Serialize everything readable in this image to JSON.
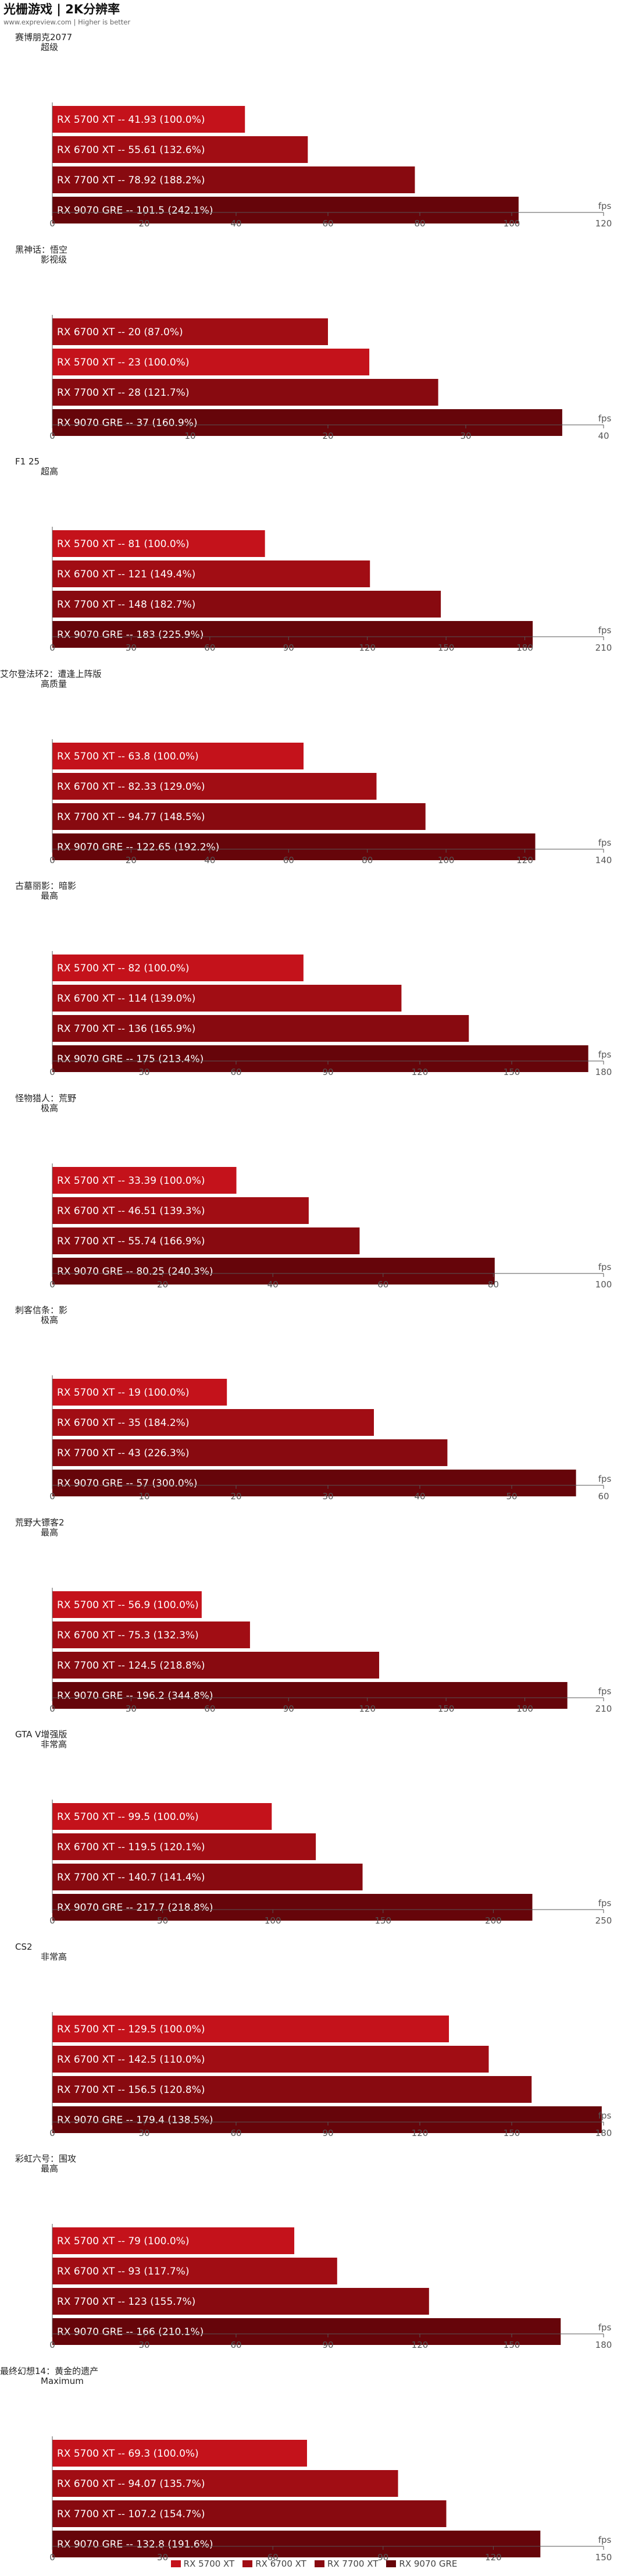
{
  "header": {
    "title": "光栅游戏 | 2K分辨率",
    "subtitle": "www.expreview.com | Higher is better"
  },
  "legend": [
    {
      "name": "RX 5700 XT",
      "color": "#c4121b"
    },
    {
      "name": "RX 6700 XT",
      "color": "#a10d14"
    },
    {
      "name": "RX 7700 XT",
      "color": "#880a10"
    },
    {
      "name": "RX 9070 GRE",
      "color": "#66050a"
    }
  ],
  "chart_data": [
    {
      "type": "bar",
      "orientation": "horizontal",
      "title": "赛博朋克2077",
      "subtitle": "超级",
      "unit": "fps",
      "xlim": [
        0,
        120
      ],
      "ticks": [
        0,
        20,
        40,
        60,
        80,
        100,
        120
      ],
      "bars": [
        {
          "gpu": "RX 5700 XT",
          "value": 41.93,
          "label": "RX 5700 XT  --  41.93 (100.0%)"
        },
        {
          "gpu": "RX 6700 XT",
          "value": 55.61,
          "label": "RX 6700 XT  --  55.61 (132.6%)"
        },
        {
          "gpu": "RX 7700 XT",
          "value": 78.92,
          "label": "RX 7700 XT  --  78.92 (188.2%)"
        },
        {
          "gpu": "RX 9070 GRE",
          "value": 101.5,
          "label": "RX 9070 GRE  --  101.5 (242.1%)"
        }
      ]
    },
    {
      "type": "bar",
      "orientation": "horizontal",
      "title": "黑神话：悟空",
      "subtitle": "影视级",
      "unit": "fps",
      "xlim": [
        0,
        40
      ],
      "ticks": [
        0,
        10,
        20,
        30,
        40
      ],
      "bars": [
        {
          "gpu": "RX 6700 XT",
          "value": 20,
          "label": "RX 6700 XT  --  20 (87.0%)"
        },
        {
          "gpu": "RX 5700 XT",
          "value": 23,
          "label": "RX 5700 XT  --  23 (100.0%)"
        },
        {
          "gpu": "RX 7700 XT",
          "value": 28,
          "label": "RX 7700 XT  --  28 (121.7%)"
        },
        {
          "gpu": "RX 9070 GRE",
          "value": 37,
          "label": "RX 9070 GRE  --  37 (160.9%)"
        }
      ]
    },
    {
      "type": "bar",
      "orientation": "horizontal",
      "title": "F1 25",
      "subtitle": "超高",
      "unit": "fps",
      "xlim": [
        0,
        210
      ],
      "ticks": [
        0,
        30,
        60,
        90,
        120,
        150,
        180,
        210
      ],
      "bars": [
        {
          "gpu": "RX 5700 XT",
          "value": 81,
          "label": "RX 5700 XT  --  81 (100.0%)"
        },
        {
          "gpu": "RX 6700 XT",
          "value": 121,
          "label": "RX 6700 XT  --  121 (149.4%)"
        },
        {
          "gpu": "RX 7700 XT",
          "value": 148,
          "label": "RX 7700 XT  --  148 (182.7%)"
        },
        {
          "gpu": "RX 9070 GRE",
          "value": 183,
          "label": "RX 9070 GRE  --  183 (225.9%)"
        }
      ]
    },
    {
      "type": "bar",
      "orientation": "horizontal",
      "title": "艾尔登法环2：遭逢上阵版",
      "subtitle": "高质量",
      "unit": "fps",
      "xlim": [
        0,
        140
      ],
      "ticks": [
        0,
        20,
        40,
        60,
        80,
        100,
        120,
        140
      ],
      "bars": [
        {
          "gpu": "RX 5700 XT",
          "value": 63.8,
          "label": "RX 5700 XT  --  63.8 (100.0%)"
        },
        {
          "gpu": "RX 6700 XT",
          "value": 82.33,
          "label": "RX 6700 XT  --  82.33 (129.0%)"
        },
        {
          "gpu": "RX 7700 XT",
          "value": 94.77,
          "label": "RX 7700 XT  --  94.77 (148.5%)"
        },
        {
          "gpu": "RX 9070 GRE",
          "value": 122.65,
          "label": "RX 9070 GRE  --  122.65 (192.2%)"
        }
      ]
    },
    {
      "type": "bar",
      "orientation": "horizontal",
      "title": "古墓丽影：暗影",
      "subtitle": "最高",
      "unit": "fps",
      "xlim": [
        0,
        180
      ],
      "ticks": [
        0,
        30,
        60,
        90,
        120,
        150,
        180
      ],
      "bars": [
        {
          "gpu": "RX 5700 XT",
          "value": 82,
          "label": "RX 5700 XT  --  82 (100.0%)"
        },
        {
          "gpu": "RX 6700 XT",
          "value": 114,
          "label": "RX 6700 XT  --  114 (139.0%)"
        },
        {
          "gpu": "RX 7700 XT",
          "value": 136,
          "label": "RX 7700 XT  --  136 (165.9%)"
        },
        {
          "gpu": "RX 9070 GRE",
          "value": 175,
          "label": "RX 9070 GRE  --  175 (213.4%)"
        }
      ]
    },
    {
      "type": "bar",
      "orientation": "horizontal",
      "title": "怪物猎人：荒野",
      "subtitle": "极高",
      "unit": "fps",
      "xlim": [
        0,
        100
      ],
      "ticks": [
        0,
        20,
        40,
        60,
        80,
        100
      ],
      "bars": [
        {
          "gpu": "RX 5700 XT",
          "value": 33.39,
          "label": "RX 5700 XT  --  33.39 (100.0%)"
        },
        {
          "gpu": "RX 6700 XT",
          "value": 46.51,
          "label": "RX 6700 XT  --  46.51 (139.3%)"
        },
        {
          "gpu": "RX 7700 XT",
          "value": 55.74,
          "label": "RX 7700 XT  --  55.74 (166.9%)"
        },
        {
          "gpu": "RX 9070 GRE",
          "value": 80.25,
          "label": "RX 9070 GRE  --  80.25 (240.3%)"
        }
      ]
    },
    {
      "type": "bar",
      "orientation": "horizontal",
      "title": "刺客信条：影",
      "subtitle": "极高",
      "unit": "fps",
      "xlim": [
        0,
        60
      ],
      "ticks": [
        0,
        10,
        20,
        30,
        40,
        50,
        60
      ],
      "bars": [
        {
          "gpu": "RX 5700 XT",
          "value": 19,
          "label": "RX 5700 XT  --  19 (100.0%)"
        },
        {
          "gpu": "RX 6700 XT",
          "value": 35,
          "label": "RX 6700 XT  --  35 (184.2%)"
        },
        {
          "gpu": "RX 7700 XT",
          "value": 43,
          "label": "RX 7700 XT  --  43 (226.3%)"
        },
        {
          "gpu": "RX 9070 GRE",
          "value": 57,
          "label": "RX 9070 GRE  --  57 (300.0%)"
        }
      ]
    },
    {
      "type": "bar",
      "orientation": "horizontal",
      "title": "荒野大镖客2",
      "subtitle": "最高",
      "unit": "fps",
      "xlim": [
        0,
        210
      ],
      "ticks": [
        0,
        30,
        60,
        90,
        120,
        150,
        180,
        210
      ],
      "bars": [
        {
          "gpu": "RX 5700 XT",
          "value": 56.9,
          "label": "RX 5700 XT  --  56.9 (100.0%)"
        },
        {
          "gpu": "RX 6700 XT",
          "value": 75.3,
          "label": "RX 6700 XT  --  75.3 (132.3%)"
        },
        {
          "gpu": "RX 7700 XT",
          "value": 124.5,
          "label": "RX 7700 XT  --  124.5 (218.8%)"
        },
        {
          "gpu": "RX 9070 GRE",
          "value": 196.2,
          "label": "RX 9070 GRE  --  196.2 (344.8%)"
        }
      ]
    },
    {
      "type": "bar",
      "orientation": "horizontal",
      "title": "GTA V增强版",
      "subtitle": "非常高",
      "unit": "fps",
      "xlim": [
        0,
        250
      ],
      "ticks": [
        0,
        50,
        100,
        150,
        200,
        250
      ],
      "bars": [
        {
          "gpu": "RX 5700 XT",
          "value": 99.5,
          "label": "RX 5700 XT  --  99.5 (100.0%)"
        },
        {
          "gpu": "RX 6700 XT",
          "value": 119.5,
          "label": "RX 6700 XT  --  119.5 (120.1%)"
        },
        {
          "gpu": "RX 7700 XT",
          "value": 140.7,
          "label": "RX 7700 XT  --  140.7 (141.4%)"
        },
        {
          "gpu": "RX 9070 GRE",
          "value": 217.7,
          "label": "RX 9070 GRE  --  217.7 (218.8%)"
        }
      ]
    },
    {
      "type": "bar",
      "orientation": "horizontal",
      "title": "CS2",
      "subtitle": "非常高",
      "unit": "fps",
      "xlim": [
        0,
        180
      ],
      "ticks": [
        0,
        30,
        60,
        90,
        120,
        150,
        180
      ],
      "bars": [
        {
          "gpu": "RX 5700 XT",
          "value": 129.5,
          "label": "RX 5700 XT  --  129.5 (100.0%)"
        },
        {
          "gpu": "RX 6700 XT",
          "value": 142.5,
          "label": "RX 6700 XT  --  142.5 (110.0%)"
        },
        {
          "gpu": "RX 7700 XT",
          "value": 156.5,
          "label": "RX 7700 XT  --  156.5 (120.8%)"
        },
        {
          "gpu": "RX 9070 GRE",
          "value": 179.4,
          "label": "RX 9070 GRE  --  179.4 (138.5%)"
        }
      ]
    },
    {
      "type": "bar",
      "orientation": "horizontal",
      "title": "彩虹六号：围攻",
      "subtitle": "最高",
      "unit": "fps",
      "xlim": [
        0,
        180
      ],
      "ticks": [
        0,
        30,
        60,
        90,
        120,
        150,
        180
      ],
      "bars": [
        {
          "gpu": "RX 5700 XT",
          "value": 79,
          "label": "RX 5700 XT  --  79 (100.0%)"
        },
        {
          "gpu": "RX 6700 XT",
          "value": 93,
          "label": "RX 6700 XT  --  93 (117.7%)"
        },
        {
          "gpu": "RX 7700 XT",
          "value": 123,
          "label": "RX 7700 XT  --  123 (155.7%)"
        },
        {
          "gpu": "RX 9070 GRE",
          "value": 166,
          "label": "RX 9070 GRE  --  166 (210.1%)"
        }
      ]
    },
    {
      "type": "bar",
      "orientation": "horizontal",
      "title": "最终幻想14：黄金的遗产",
      "subtitle": "Maximum",
      "unit": "fps",
      "xlim": [
        0,
        150
      ],
      "ticks": [
        0,
        30,
        60,
        90,
        120,
        150
      ],
      "bars": [
        {
          "gpu": "RX 5700 XT",
          "value": 69.3,
          "label": "RX 5700 XT  --  69.3 (100.0%)"
        },
        {
          "gpu": "RX 6700 XT",
          "value": 94.07,
          "label": "RX 6700 XT  --  94.07 (135.7%)"
        },
        {
          "gpu": "RX 7700 XT",
          "value": 107.2,
          "label": "RX 7700 XT  --  107.2 (154.7%)"
        },
        {
          "gpu": "RX 9070 GRE",
          "value": 132.8,
          "label": "RX 9070 GRE  --  132.8 (191.6%)"
        }
      ]
    }
  ]
}
